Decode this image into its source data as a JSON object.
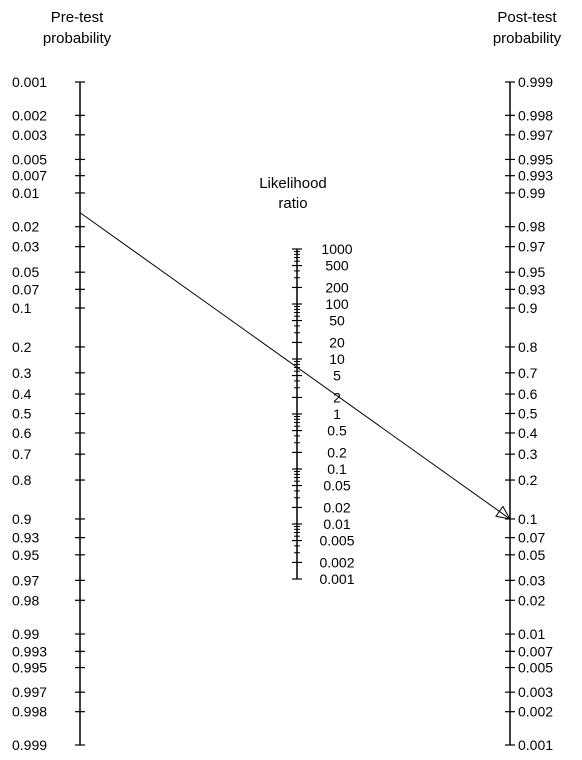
{
  "pre_test": {
    "title_line1": "Pre-test",
    "title_line2": "probability",
    "ticks": [
      "0.001",
      "0.002",
      "0.003",
      "0.005",
      "0.007",
      "0.01",
      "0.02",
      "0.03",
      "0.05",
      "0.07",
      "0.1",
      "0.2",
      "0.3",
      "0.4",
      "0.5",
      "0.6",
      "0.7",
      "0.8",
      "0.9",
      "0.93",
      "0.95",
      "0.97",
      "0.98",
      "0.99",
      "0.993",
      "0.995",
      "0.997",
      "0.998",
      "0.999"
    ]
  },
  "likelihood_ratio": {
    "title_line1": "Likelihood",
    "title_line2": "ratio",
    "ticks": [
      "1000",
      "500",
      "200",
      "100",
      "50",
      "20",
      "10",
      "5",
      "2",
      "1",
      "0.5",
      "0.2",
      "0.1",
      "0.05",
      "0.02",
      "0.01",
      "0.005",
      "0.002",
      "0.001"
    ]
  },
  "post_test": {
    "title_line1": "Post-test",
    "title_line2": "probability",
    "ticks": [
      "0.999",
      "0.998",
      "0.997",
      "0.995",
      "0.993",
      "0.99",
      "0.98",
      "0.97",
      "0.95",
      "0.93",
      "0.9",
      "0.8",
      "0.7",
      "0.6",
      "0.5",
      "0.4",
      "0.3",
      "0.2",
      "0.1",
      "0.07",
      "0.05",
      "0.03",
      "0.02",
      "0.01",
      "0.007",
      "0.005",
      "0.003",
      "0.002",
      "0.001"
    ]
  },
  "example_line": {
    "pre_test_probability": 0.015,
    "post_test_probability": 0.1
  },
  "colors": {
    "line": "#000000",
    "text": "#000000",
    "background": "#ffffff"
  }
}
